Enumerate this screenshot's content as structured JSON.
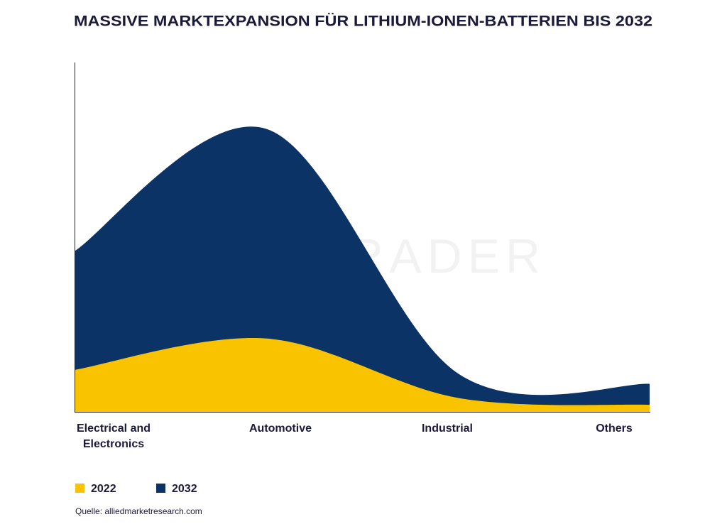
{
  "chart_data": {
    "type": "area",
    "title": "MASSIVE MARKTEXPANSION FÜR LITHIUM-IONEN-BATTERIEN BIS 2032",
    "watermark": "CAPITRADER",
    "categories": [
      "Electrical and Electronics",
      "Automotive",
      "Industrial",
      "Others"
    ],
    "series": [
      {
        "name": "2032",
        "color": "#0b3366",
        "values": [
          46,
          81,
          11,
          8
        ]
      },
      {
        "name": "2022",
        "color": "#f9c300",
        "values": [
          12,
          21,
          4,
          2
        ]
      }
    ],
    "ylim": [
      0,
      100
    ],
    "source": "Quelle: alliedmarketresearch.com"
  }
}
